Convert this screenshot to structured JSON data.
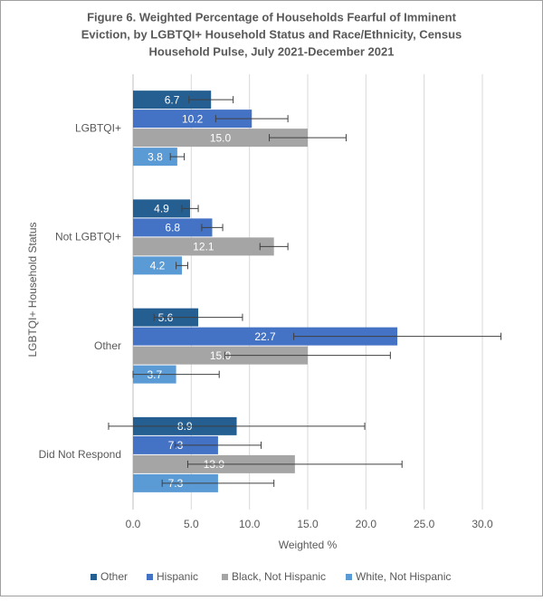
{
  "chart_data": {
    "type": "hbar",
    "title": [
      "Figure 6. Weighted Percentage of Households Fearful of Imminent",
      "Eviction, by LGBTQI+ Household Status and Race/Ethnicity, Census",
      "Household Pulse, July 2021-December 2021"
    ],
    "x_label": "Weighted %",
    "y_label": "LGBTQI+ Household Status",
    "categories": [
      "LGBTQI+",
      "Not LGBTQI+",
      "Other",
      "Did Not Respond"
    ],
    "series": [
      {
        "name": "Other",
        "color": "#255e91",
        "values": [
          6.7,
          4.9,
          5.6,
          8.9
        ],
        "value_labels": [
          "6.7",
          "4.9",
          "5.6",
          "8.9"
        ],
        "errors": [
          1.9,
          0.7,
          3.8,
          11.0
        ]
      },
      {
        "name": "Hispanic",
        "color": "#4472c4",
        "values": [
          10.2,
          6.8,
          22.7,
          7.3
        ],
        "value_labels": [
          "10.2",
          "6.8",
          "22.7",
          "7.3"
        ],
        "errors": [
          3.1,
          0.9,
          8.9,
          3.7
        ]
      },
      {
        "name": "Black, Not Hispanic",
        "color": "#a5a5a5",
        "values": [
          15,
          12.1,
          15,
          13.9
        ],
        "value_labels": [
          "15.0",
          "12.1",
          "15.0",
          "13.9"
        ],
        "errors": [
          3.3,
          1.2,
          7.1,
          9.2
        ]
      },
      {
        "name": "White, Not Hispanic",
        "color": "#5b9bd5",
        "values": [
          3.8,
          4.2,
          3.7,
          7.3
        ],
        "value_labels": [
          "3.8",
          "4.2",
          "3.7",
          "7.3"
        ],
        "errors": [
          0.6,
          0.5,
          3.7,
          4.8
        ]
      }
    ],
    "xlim": [
      0,
      30
    ],
    "xticks": [
      {
        "value": 0,
        "label": "0.0"
      },
      {
        "value": 5,
        "label": "5.0"
      },
      {
        "value": 10,
        "label": "10.0"
      },
      {
        "value": 15,
        "label": "15.0"
      },
      {
        "value": 20,
        "label": "20.0"
      },
      {
        "value": 25,
        "label": "25.0"
      },
      {
        "value": 30,
        "label": "30.0"
      }
    ],
    "grid": true,
    "legend": "bottom"
  }
}
